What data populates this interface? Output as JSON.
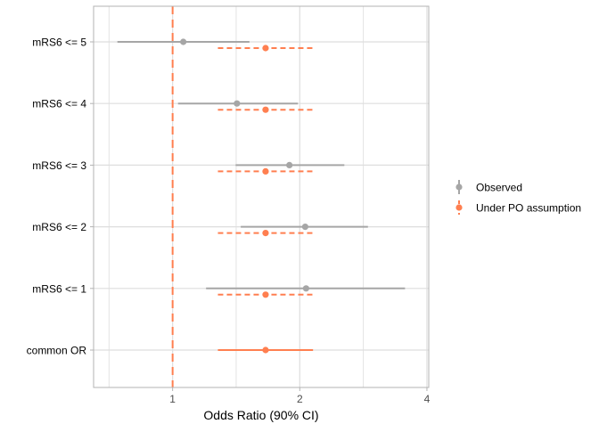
{
  "chart_data": {
    "type": "forest",
    "xlabel": "Odds Ratio (90% CI)",
    "x_scale": "log2",
    "xlim": [
      0.65,
      4.04
    ],
    "x_ticks": [
      {
        "value": 1,
        "label": "1"
      },
      {
        "value": 2,
        "label": "2"
      },
      {
        "value": 4,
        "label": "4"
      }
    ],
    "x_minor_grid": [
      0.707,
      1.414,
      2.828
    ],
    "reference_line": {
      "value": 1,
      "style": "dashed",
      "color": "#FF7F50"
    },
    "grid": true,
    "legend": {
      "placement": "right",
      "entries": [
        {
          "name": "Observed",
          "color": "#A6A6A6"
        },
        {
          "name": "Under PO assumption",
          "color": "#FF7F50"
        }
      ]
    },
    "categories": [
      "mRS6 <= 5",
      "mRS6 <= 4",
      "mRS6 <= 3",
      "mRS6 <= 2",
      "mRS6 <= 1",
      "common OR"
    ],
    "series": [
      {
        "name": "Observed",
        "color": "#A6A6A6",
        "linestyle": "solid",
        "points": [
          {
            "category": "mRS6 <= 5",
            "or": 1.06,
            "lower": 0.74,
            "upper": 1.52
          },
          {
            "category": "mRS6 <= 4",
            "or": 1.42,
            "lower": 1.03,
            "upper": 1.98
          },
          {
            "category": "mRS6 <= 3",
            "or": 1.89,
            "lower": 1.41,
            "upper": 2.55
          },
          {
            "category": "mRS6 <= 2",
            "or": 2.06,
            "lower": 1.45,
            "upper": 2.9
          },
          {
            "category": "mRS6 <= 1",
            "or": 2.07,
            "lower": 1.2,
            "upper": 3.55
          }
        ]
      },
      {
        "name": "Under PO assumption",
        "color": "#FF7F50",
        "linestyle": "dashed",
        "points": [
          {
            "category": "mRS6 <= 5",
            "or": 1.66,
            "lower": 1.28,
            "upper": 2.15
          },
          {
            "category": "mRS6 <= 4",
            "or": 1.66,
            "lower": 1.28,
            "upper": 2.15
          },
          {
            "category": "mRS6 <= 3",
            "or": 1.66,
            "lower": 1.28,
            "upper": 2.15
          },
          {
            "category": "mRS6 <= 2",
            "or": 1.66,
            "lower": 1.28,
            "upper": 2.15
          },
          {
            "category": "mRS6 <= 1",
            "or": 1.66,
            "lower": 1.28,
            "upper": 2.15
          },
          {
            "category": "common OR",
            "or": 1.66,
            "lower": 1.28,
            "upper": 2.15,
            "linestyle": "solid"
          }
        ]
      }
    ]
  }
}
